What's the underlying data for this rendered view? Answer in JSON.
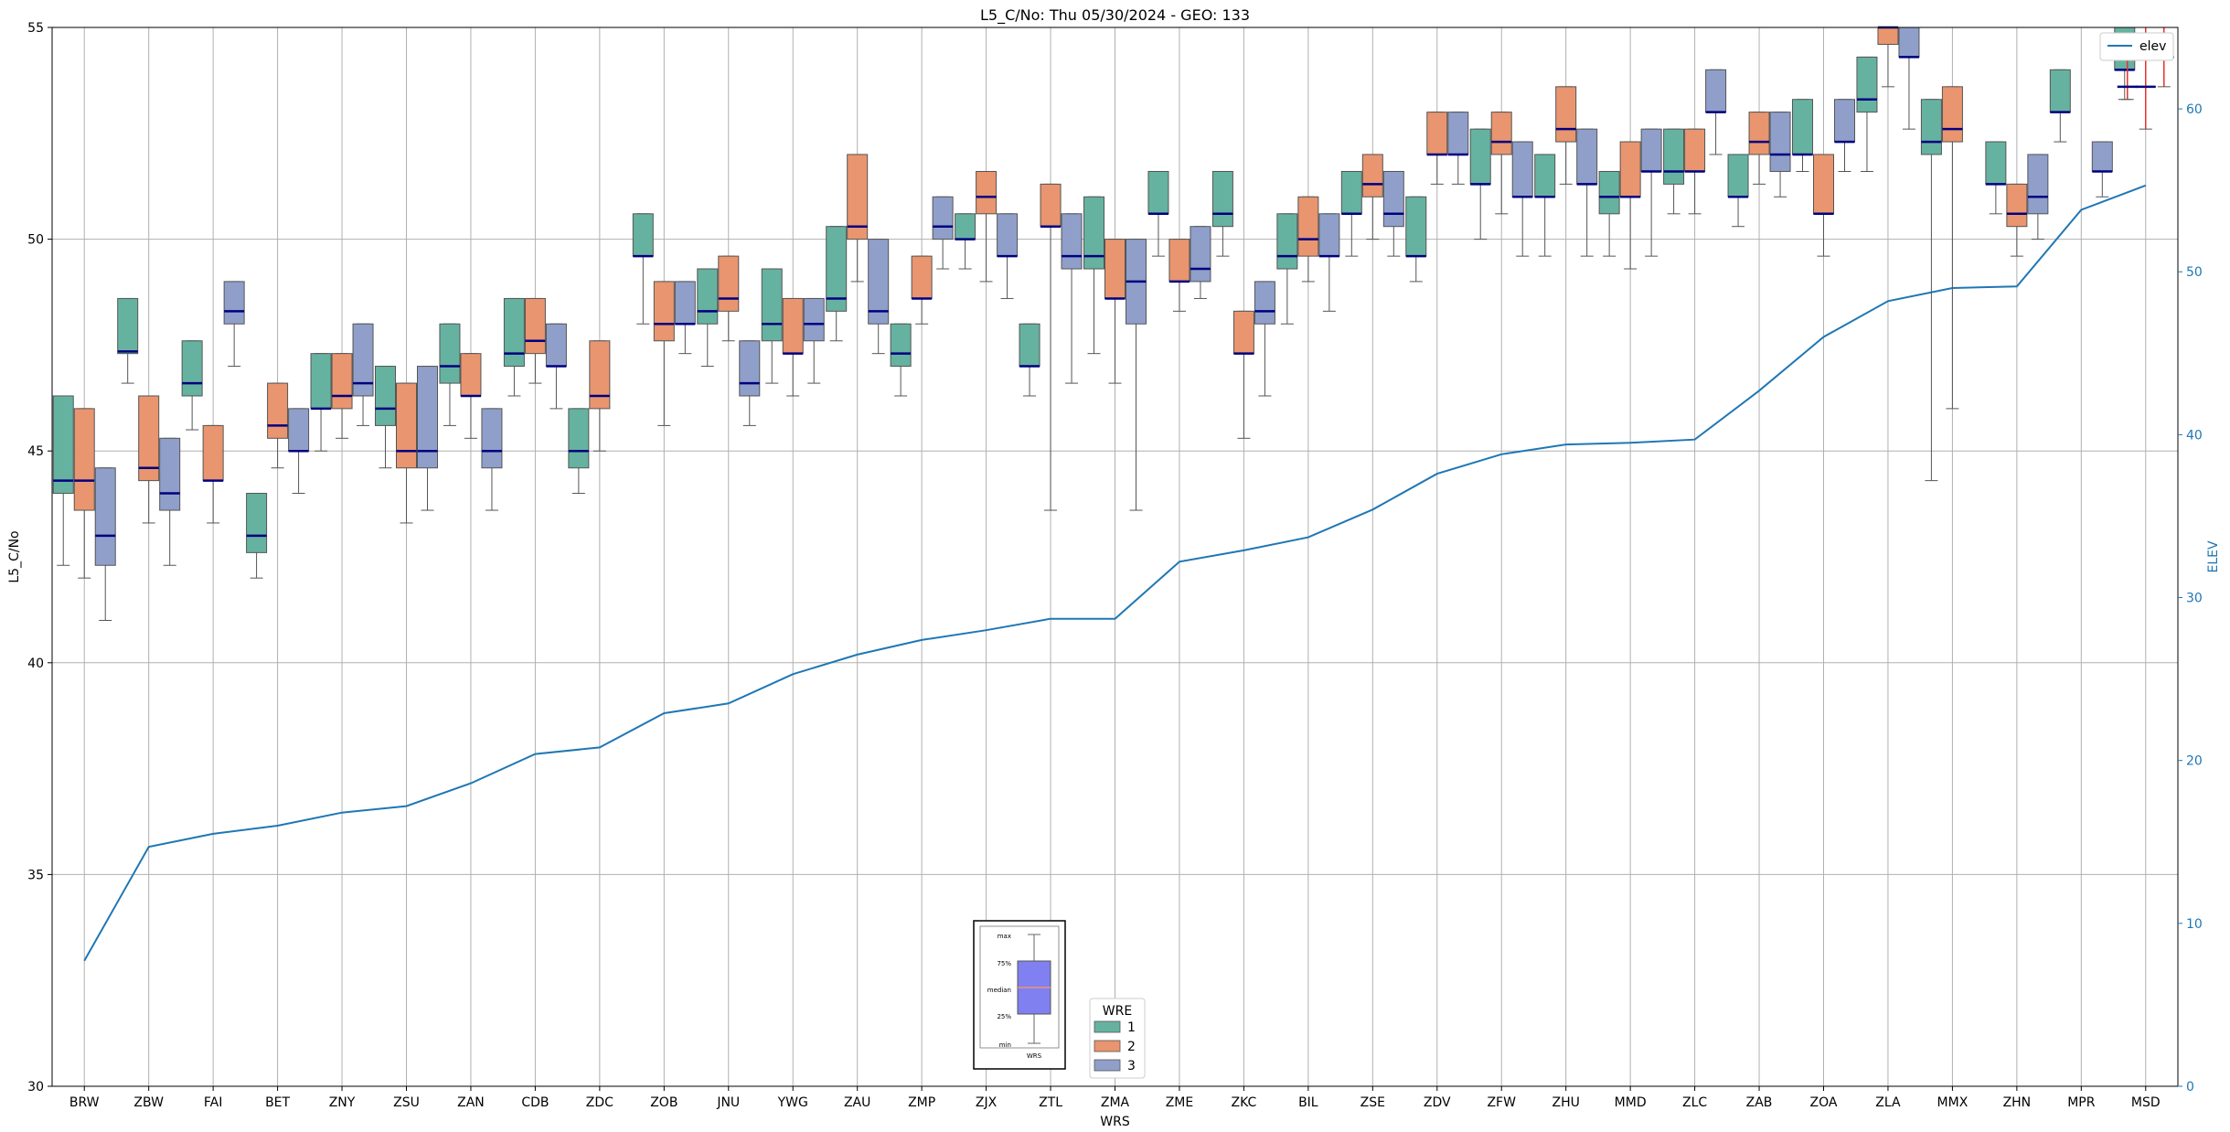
{
  "chart_data": {
    "type": "box",
    "title": "L5_C/No: Thu 05/30/2024 - GEO: 133",
    "xlabel": "WRS",
    "ylabel": "L5_C/No",
    "y2label": "ELEV",
    "ylim": [
      30,
      55
    ],
    "y2lim": [
      0,
      65
    ],
    "yticks": [
      30,
      35,
      40,
      45,
      50,
      55
    ],
    "y2ticks": [
      0,
      10,
      20,
      30,
      40,
      50,
      60
    ],
    "grid": true,
    "categories": [
      "BRW",
      "ZBW",
      "FAI",
      "BET",
      "ZNY",
      "ZSU",
      "ZAN",
      "CDB",
      "ZDC",
      "ZOB",
      "JNU",
      "YWG",
      "ZAU",
      "ZMP",
      "ZJX",
      "ZTL",
      "ZMA",
      "ZME",
      "ZKC",
      "BIL",
      "ZSE",
      "ZDV",
      "ZFW",
      "ZHU",
      "MMD",
      "ZLC",
      "ZAB",
      "ZOA",
      "ZLA",
      "MMX",
      "ZHN",
      "MPR",
      "MSD"
    ],
    "series_colors": {
      "1": "#66b2a0",
      "2": "#e9956f",
      "3": "#8f9fca"
    },
    "series": [
      {
        "name": "1",
        "boxes": [
          {
            "category": "BRW",
            "min": 42.3,
            "q1": 44.0,
            "median": 44.3,
            "q3": 44.6,
            "max": 46.3
          },
          {
            "category": "ZBW",
            "min": 46.6,
            "q1": 47.3,
            "median": 47.35,
            "q3": 47.6,
            "max": 48.6
          },
          {
            "category": "FAI",
            "min": 45.5,
            "q1": 46.3,
            "median": 46.6,
            "q3": 47.0,
            "max": 47.6
          },
          {
            "category": "BET",
            "min": 42.0,
            "q1": 42.6,
            "median": 43.0,
            "q3": 43.0,
            "max": 44.0
          },
          {
            "category": "ZNY",
            "min": 45.0,
            "q1": 46.0,
            "median": 46.0,
            "q3": 46.3,
            "max": 47.3
          },
          {
            "category": "ZSU",
            "min": 44.6,
            "q1": 45.6,
            "median": 46.0,
            "q3": 46.0,
            "max": 47.0
          },
          {
            "category": "ZAN",
            "min": 45.6,
            "q1": 46.6,
            "median": 47.0,
            "q3": 47.0,
            "max": 48.0
          },
          {
            "category": "CDB",
            "min": 46.3,
            "q1": 47.0,
            "median": 47.3,
            "q3": 47.3,
            "max": 48.6
          },
          {
            "category": "ZDC",
            "min": 44.0,
            "q1": 44.6,
            "median": 45.0,
            "q3": 45.0,
            "max": 46.0
          },
          {
            "category": "ZOB",
            "min": 48.0,
            "q1": 49.6,
            "median": 49.6,
            "q3": 50.0,
            "max": 50.6
          },
          {
            "category": "JNU",
            "min": 47.0,
            "q1": 48.0,
            "median": 48.3,
            "q3": 48.3,
            "max": 49.3
          },
          {
            "category": "YWG",
            "min": 46.6,
            "q1": 47.6,
            "median": 48.0,
            "q3": 48.3,
            "max": 49.3
          },
          {
            "category": "ZAU",
            "min": 47.6,
            "q1": 48.3,
            "median": 48.6,
            "q3": 48.6,
            "max": 50.3
          },
          {
            "category": "ZMP",
            "min": 46.3,
            "q1": 47.0,
            "median": 47.3,
            "q3": 47.3,
            "max": 48.0
          },
          {
            "category": "ZJX",
            "min": 49.3,
            "q1": 50.0,
            "median": 50.0,
            "q3": 50.3,
            "max": 50.6
          },
          {
            "category": "ZTL",
            "min": 46.3,
            "q1": 47.0,
            "median": 47.0,
            "q3": 47.3,
            "max": 48.0
          },
          {
            "category": "ZMA",
            "min": 47.3,
            "q1": 49.3,
            "median": 49.6,
            "q3": 50.0,
            "max": 51.0
          },
          {
            "category": "ZME",
            "min": 49.6,
            "q1": 50.6,
            "median": 50.6,
            "q3": 51.0,
            "max": 51.6
          },
          {
            "category": "ZKC",
            "min": 49.6,
            "q1": 50.3,
            "median": 50.6,
            "q3": 50.6,
            "max": 51.6
          },
          {
            "category": "BIL",
            "min": 48.0,
            "q1": 49.3,
            "median": 49.6,
            "q3": 49.6,
            "max": 50.6
          },
          {
            "category": "ZSE",
            "min": 49.6,
            "q1": 50.6,
            "median": 50.6,
            "q3": 51.0,
            "max": 51.6
          },
          {
            "category": "ZDV",
            "min": 49.0,
            "q1": 49.6,
            "median": 49.6,
            "q3": 50.0,
            "max": 51.0
          },
          {
            "category": "ZFW",
            "min": 50.0,
            "q1": 51.3,
            "median": 51.3,
            "q3": 51.6,
            "max": 52.6
          },
          {
            "category": "ZHU",
            "min": 49.6,
            "q1": 51.0,
            "median": 51.0,
            "q3": 51.3,
            "max": 52.0
          },
          {
            "category": "MMD",
            "min": 49.6,
            "q1": 50.6,
            "median": 51.0,
            "q3": 51.3,
            "max": 51.6
          },
          {
            "category": "ZLC",
            "min": 50.6,
            "q1": 51.3,
            "median": 51.6,
            "q3": 52.0,
            "max": 52.6
          },
          {
            "category": "ZAB",
            "min": 50.3,
            "q1": 51.0,
            "median": 51.0,
            "q3": 51.3,
            "max": 52.0
          },
          {
            "category": "ZOA",
            "min": 51.6,
            "q1": 52.0,
            "median": 52.0,
            "q3": 52.3,
            "max": 53.3
          },
          {
            "category": "ZLA",
            "min": 51.6,
            "q1": 53.0,
            "median": 53.3,
            "q3": 53.6,
            "max": 54.3
          },
          {
            "category": "MMX",
            "min": 44.3,
            "q1": 52.0,
            "median": 52.3,
            "q3": 52.3,
            "max": 53.3
          },
          {
            "category": "ZHN",
            "min": 50.6,
            "q1": 51.3,
            "median": 51.3,
            "q3": 51.6,
            "max": 52.3
          },
          {
            "category": "MPR",
            "min": 52.3,
            "q1": 53.0,
            "median": 53.0,
            "q3": 53.3,
            "max": 54.0
          },
          {
            "category": "MSD",
            "min": 53.3,
            "q1": 54.0,
            "median": 54.0,
            "q3": 54.3,
            "max": 55.0
          }
        ]
      },
      {
        "name": "2",
        "boxes": [
          {
            "category": "BRW",
            "min": 42.0,
            "q1": 43.6,
            "median": 44.3,
            "q3": 44.6,
            "max": 46.0
          },
          {
            "category": "ZBW",
            "min": 43.3,
            "q1": 44.3,
            "median": 44.6,
            "q3": 45.3,
            "max": 46.3
          },
          {
            "category": "FAI",
            "min": 43.3,
            "q1": 44.3,
            "median": 44.3,
            "q3": 44.6,
            "max": 45.6
          },
          {
            "category": "BET",
            "min": 44.6,
            "q1": 45.3,
            "median": 45.6,
            "q3": 45.6,
            "max": 46.6
          },
          {
            "category": "ZNY",
            "min": 45.3,
            "q1": 46.0,
            "median": 46.3,
            "q3": 46.3,
            "max": 47.3
          },
          {
            "category": "ZSU",
            "min": 43.3,
            "q1": 44.6,
            "median": 45.0,
            "q3": 45.3,
            "max": 46.6
          },
          {
            "category": "ZAN",
            "min": 45.3,
            "q1": 46.3,
            "median": 46.3,
            "q3": 46.6,
            "max": 47.3
          },
          {
            "category": "CDB",
            "min": 46.6,
            "q1": 47.3,
            "median": 47.6,
            "q3": 47.6,
            "max": 48.6
          },
          {
            "category": "ZDC",
            "min": 45.0,
            "q1": 46.0,
            "median": 46.3,
            "q3": 46.3,
            "max": 47.6
          },
          {
            "category": "ZOB",
            "min": 45.6,
            "q1": 47.6,
            "median": 48.0,
            "q3": 48.0,
            "max": 49.0
          },
          {
            "category": "JNU",
            "min": 47.6,
            "q1": 48.3,
            "median": 48.6,
            "q3": 49.0,
            "max": 49.6
          },
          {
            "category": "YWG",
            "min": 46.3,
            "q1": 47.3,
            "median": 47.3,
            "q3": 47.6,
            "max": 48.6
          },
          {
            "category": "ZAU",
            "min": 49.0,
            "q1": 50.0,
            "median": 50.3,
            "q3": 50.3,
            "max": 52.0
          },
          {
            "category": "ZMP",
            "min": 48.0,
            "q1": 48.6,
            "median": 48.6,
            "q3": 49.0,
            "max": 49.6
          },
          {
            "category": "ZJX",
            "min": 49.0,
            "q1": 50.6,
            "median": 51.0,
            "q3": 51.0,
            "max": 51.6
          },
          {
            "category": "ZTL",
            "min": 43.6,
            "q1": 50.3,
            "median": 50.3,
            "q3": 50.6,
            "max": 51.3
          },
          {
            "category": "ZMA",
            "min": 46.6,
            "q1": 48.6,
            "median": 48.6,
            "q3": 49.0,
            "max": 50.0
          },
          {
            "category": "ZME",
            "min": 48.3,
            "q1": 49.0,
            "median": 49.0,
            "q3": 49.3,
            "max": 50.0
          },
          {
            "category": "ZKC",
            "min": 45.3,
            "q1": 47.3,
            "median": 47.3,
            "q3": 47.6,
            "max": 48.3
          },
          {
            "category": "BIL",
            "min": 49.0,
            "q1": 49.6,
            "median": 50.0,
            "q3": 50.0,
            "max": 51.0
          },
          {
            "category": "ZSE",
            "min": 50.0,
            "q1": 51.0,
            "median": 51.3,
            "q3": 51.3,
            "max": 52.0
          },
          {
            "category": "ZDV",
            "min": 51.3,
            "q1": 52.0,
            "median": 52.0,
            "q3": 52.3,
            "max": 53.0
          },
          {
            "category": "ZFW",
            "min": 50.6,
            "q1": 52.0,
            "median": 52.3,
            "q3": 52.3,
            "max": 53.0
          },
          {
            "category": "ZHU",
            "min": 51.3,
            "q1": 52.3,
            "median": 52.6,
            "q3": 52.6,
            "max": 53.6
          },
          {
            "category": "MMD",
            "min": 49.3,
            "q1": 51.0,
            "median": 51.0,
            "q3": 51.3,
            "max": 52.3
          },
          {
            "category": "ZLC",
            "min": 50.6,
            "q1": 51.6,
            "median": 51.6,
            "q3": 52.0,
            "max": 52.6
          },
          {
            "category": "ZAB",
            "min": 51.3,
            "q1": 52.0,
            "median": 52.3,
            "q3": 52.3,
            "max": 53.0
          },
          {
            "category": "ZOA",
            "min": 49.6,
            "q1": 50.6,
            "median": 50.6,
            "q3": 51.0,
            "max": 52.0
          },
          {
            "category": "ZLA",
            "min": 53.6,
            "q1": 54.6,
            "median": 55.0,
            "q3": 55.0,
            "max": 55.0
          },
          {
            "category": "MMX",
            "min": 46.0,
            "q1": 52.3,
            "median": 52.6,
            "q3": 52.6,
            "max": 53.6
          },
          {
            "category": "ZHN",
            "min": 49.6,
            "q1": 50.3,
            "median": 50.6,
            "q3": 50.6,
            "max": 51.3
          }
        ]
      },
      {
        "name": "3",
        "boxes": [
          {
            "category": "BRW",
            "min": 41.0,
            "q1": 42.3,
            "median": 43.0,
            "q3": 43.3,
            "max": 44.6
          },
          {
            "category": "ZBW",
            "min": 42.3,
            "q1": 43.6,
            "median": 44.0,
            "q3": 44.3,
            "max": 45.3
          },
          {
            "category": "FAI",
            "min": 47.0,
            "q1": 48.0,
            "median": 48.3,
            "q3": 48.3,
            "max": 49.0
          },
          {
            "category": "BET",
            "min": 44.0,
            "q1": 45.0,
            "median": 45.0,
            "q3": 45.3,
            "max": 46.0
          },
          {
            "category": "ZNY",
            "min": 45.6,
            "q1": 46.3,
            "median": 46.6,
            "q3": 46.6,
            "max": 48.0
          },
          {
            "category": "ZSU",
            "min": 43.6,
            "q1": 44.6,
            "median": 45.0,
            "q3": 45.3,
            "max": 47.0
          },
          {
            "category": "ZAN",
            "min": 43.6,
            "q1": 44.6,
            "median": 45.0,
            "q3": 45.0,
            "max": 46.0
          },
          {
            "category": "CDB",
            "min": 46.0,
            "q1": 47.0,
            "median": 47.0,
            "q3": 47.3,
            "max": 48.0
          },
          {
            "category": "ZOB",
            "min": 47.3,
            "q1": 48.0,
            "median": 48.0,
            "q3": 48.3,
            "max": 49.0
          },
          {
            "category": "JNU",
            "min": 45.6,
            "q1": 46.3,
            "median": 46.6,
            "q3": 46.6,
            "max": 47.6
          },
          {
            "category": "YWG",
            "min": 46.6,
            "q1": 47.6,
            "median": 48.0,
            "q3": 48.0,
            "max": 48.6
          },
          {
            "category": "ZAU",
            "min": 47.3,
            "q1": 48.0,
            "median": 48.3,
            "q3": 48.3,
            "max": 50.0
          },
          {
            "category": "ZMP",
            "min": 49.3,
            "q1": 50.0,
            "median": 50.3,
            "q3": 50.3,
            "max": 51.0
          },
          {
            "category": "ZJX",
            "min": 48.6,
            "q1": 49.6,
            "median": 49.6,
            "q3": 50.0,
            "max": 50.6
          },
          {
            "category": "ZTL",
            "min": 46.6,
            "q1": 49.3,
            "median": 49.6,
            "q3": 49.6,
            "max": 50.6
          },
          {
            "category": "ZMA",
            "min": 43.6,
            "q1": 48.0,
            "median": 49.0,
            "q3": 49.0,
            "max": 50.0
          },
          {
            "category": "ZME",
            "min": 48.6,
            "q1": 49.0,
            "median": 49.3,
            "q3": 49.3,
            "max": 50.3
          },
          {
            "category": "ZKC",
            "min": 46.3,
            "q1": 48.0,
            "median": 48.3,
            "q3": 48.3,
            "max": 49.0
          },
          {
            "category": "BIL",
            "min": 48.3,
            "q1": 49.6,
            "median": 49.6,
            "q3": 49.6,
            "max": 50.6
          },
          {
            "category": "ZSE",
            "min": 49.6,
            "q1": 50.3,
            "median": 50.6,
            "q3": 51.0,
            "max": 51.6
          },
          {
            "category": "ZDV",
            "min": 51.3,
            "q1": 52.0,
            "median": 52.0,
            "q3": 52.3,
            "max": 53.0
          },
          {
            "category": "ZFW",
            "min": 49.6,
            "q1": 51.0,
            "median": 51.0,
            "q3": 51.3,
            "max": 52.3
          },
          {
            "category": "ZHU",
            "min": 49.6,
            "q1": 51.3,
            "median": 51.3,
            "q3": 51.6,
            "max": 52.6
          },
          {
            "category": "MMD",
            "min": 49.6,
            "q1": 51.6,
            "median": 51.6,
            "q3": 52.0,
            "max": 52.6
          },
          {
            "category": "ZLC",
            "min": 52.0,
            "q1": 53.0,
            "median": 53.0,
            "q3": 53.3,
            "max": 54.0
          },
          {
            "category": "ZAB",
            "min": 51.0,
            "q1": 51.6,
            "median": 52.0,
            "q3": 52.0,
            "max": 53.0
          },
          {
            "category": "ZOA",
            "min": 51.6,
            "q1": 52.3,
            "median": 52.3,
            "q3": 52.6,
            "max": 53.3
          },
          {
            "category": "ZLA",
            "min": 52.6,
            "q1": 54.3,
            "median": 54.3,
            "q3": 54.6,
            "max": 55.0
          },
          {
            "category": "ZHN",
            "min": 50.0,
            "q1": 50.6,
            "median": 51.0,
            "q3": 51.0,
            "max": 52.0
          },
          {
            "category": "MPR",
            "min": 51.0,
            "q1": 51.6,
            "median": 51.6,
            "q3": 52.0,
            "max": 52.3
          }
        ]
      }
    ],
    "red_whisker_marks": [
      {
        "category": "MSD",
        "min": 53.3,
        "q1": 53.6,
        "median": 53.6,
        "max": 54.6
      },
      {
        "category": "MSD",
        "min": 52.6,
        "q1": 53.6,
        "median": 53.6,
        "max": 55.0
      },
      {
        "category": "MSD",
        "min": 53.6,
        "q1": 54.3,
        "median": 54.3,
        "max": 55.0
      }
    ],
    "elev_line": {
      "name": "elev",
      "color": "#1f77b4",
      "values": [
        7.7,
        14.7,
        15.5,
        16.0,
        16.8,
        17.2,
        18.6,
        20.4,
        20.8,
        22.9,
        23.5,
        25.3,
        26.5,
        27.4,
        28.0,
        28.7,
        28.7,
        32.2,
        32.9,
        33.7,
        35.4,
        37.6,
        38.8,
        39.4,
        39.5,
        39.7,
        42.7,
        46.0,
        48.2,
        49.0,
        49.1,
        53.8,
        55.3
      ]
    },
    "legend": {
      "title": "WRE",
      "entries": [
        "1",
        "2",
        "3"
      ],
      "position": "bottom-center"
    },
    "elev_legend": {
      "label": "elev",
      "position": "top-right"
    },
    "key_box": {
      "labels": [
        "max",
        "75%",
        "median",
        "25%",
        "min"
      ],
      "xlabel": "WRS",
      "position": "bottom-center"
    }
  }
}
